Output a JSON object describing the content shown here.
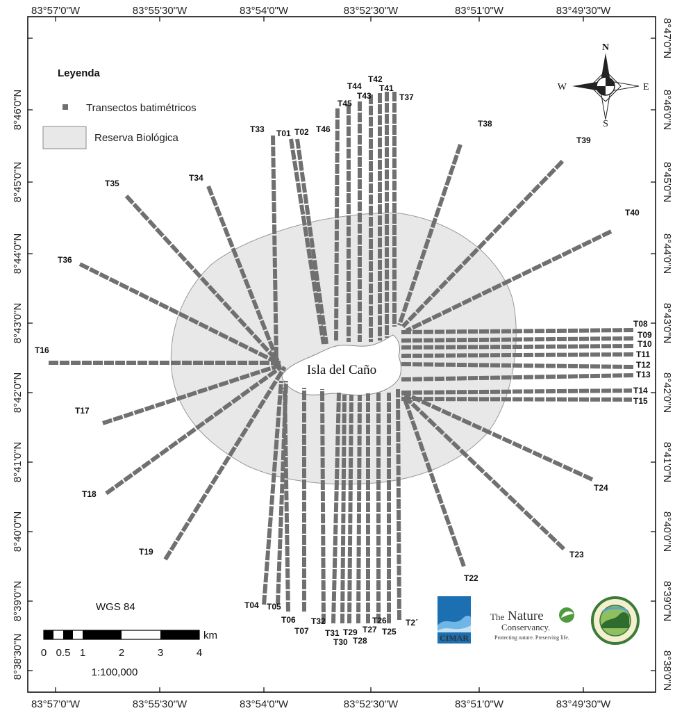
{
  "axes": {
    "top": [
      "83°57'0\"W",
      "83°55'30\"W",
      "83°54'0\"W",
      "83°52'30\"W",
      "83°51'0\"W",
      "83°49'30\"W"
    ],
    "bottom": [
      "83°57'0\"W",
      "83°55'30\"W",
      "83°54'0\"W",
      "83°52'30\"W",
      "83°51'0\"W",
      "83°49'30\"W"
    ],
    "left": [
      "8°46'0\"N",
      "8°45'0\"N",
      "8°44'0\"N",
      "8°43'0\"N",
      "8°42'0\"N",
      "8°41'0\"N",
      "8°40'0\"N",
      "8°39'0\"N",
      "8°38'30\"N"
    ],
    "right": [
      "8°47'0\"N",
      "8°46'0\"N",
      "8°45'0\"N",
      "8°44'0\"N",
      "8°43'0\"N",
      "8°42'0\"N",
      "8°41'0\"N",
      "8°40'0\"N",
      "8°39'0\"N",
      "8°38'0\"N"
    ]
  },
  "legend": {
    "title": "Leyenda",
    "transects": "Transectos batimétricos",
    "reserve": "Reserva Biológica"
  },
  "island_name": "Isla del Caño",
  "compass": {
    "n": "N",
    "s": "S",
    "e": "E",
    "w": "W"
  },
  "datum": "WGS 84",
  "scale": {
    "unit": "km",
    "ticks": [
      "0",
      "0.5",
      "1",
      "2",
      "3",
      "4"
    ],
    "ratio": "1:100,000"
  },
  "logos": {
    "cimar": "CIMAR",
    "tnc_the": "The",
    "tnc_nature": "Nature",
    "tnc_conservancy": "Conservancy.",
    "tnc_tagline": "Protecting nature. Preserving life."
  },
  "transect_labels": [
    "T01",
    "T02",
    "T04",
    "T05",
    "T06",
    "T07",
    "T08",
    "T09",
    "T10",
    "T11",
    "T12",
    "T13",
    "T14",
    "T15",
    "T16",
    "T17",
    "T18",
    "T19",
    "T22",
    "T23",
    "T24",
    "T25",
    "T26",
    "T27",
    "T28",
    "T29",
    "T30",
    "T31",
    "T32",
    "T33",
    "T34",
    "T35",
    "T36",
    "T37",
    "T38",
    "T39",
    "T40",
    "T41",
    "T42",
    "T43",
    "T44",
    "T45",
    "T46",
    "T2´"
  ],
  "colors": {
    "transect": "#707070",
    "reserve_fill": "#e8e8e8",
    "reserve_stroke": "#999999",
    "island_fill": "#ffffff"
  }
}
